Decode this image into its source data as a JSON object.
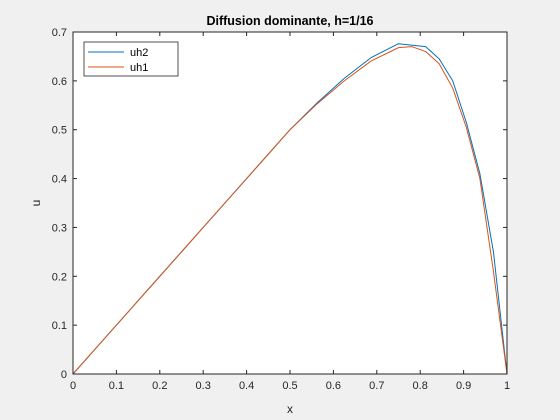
{
  "chart_data": {
    "type": "line",
    "title": "Diffusion dominante, h=1/16",
    "xlabel": "x",
    "ylabel": "u",
    "xlim": [
      0,
      1
    ],
    "ylim": [
      0,
      0.7
    ],
    "xticks": [
      "0",
      "0.1",
      "0.2",
      "0.3",
      "0.4",
      "0.5",
      "0.6",
      "0.7",
      "0.8",
      "0.9",
      "1"
    ],
    "yticks": [
      "0",
      "0.1",
      "0.2",
      "0.3",
      "0.4",
      "0.5",
      "0.6",
      "0.7"
    ],
    "grid": false,
    "legend_position": "top-left",
    "series": [
      {
        "name": "uh2",
        "color": "#0072BD",
        "x": [
          0,
          0.0625,
          0.125,
          0.1875,
          0.25,
          0.3125,
          0.375,
          0.4375,
          0.5,
          0.5625,
          0.625,
          0.6875,
          0.75,
          0.8125,
          0.84375,
          0.875,
          0.90625,
          0.9375,
          0.96875,
          1
        ],
        "y": [
          0,
          0.0625,
          0.125,
          0.1875,
          0.25,
          0.3125,
          0.375,
          0.4375,
          0.5,
          0.555,
          0.605,
          0.648,
          0.676,
          0.67,
          0.645,
          0.6,
          0.515,
          0.41,
          0.25,
          0
        ]
      },
      {
        "name": "uh1",
        "color": "#D95319",
        "x": [
          0,
          0.0625,
          0.125,
          0.1875,
          0.25,
          0.3125,
          0.375,
          0.4375,
          0.5,
          0.5625,
          0.625,
          0.6875,
          0.75,
          0.78125,
          0.8125,
          0.84375,
          0.875,
          0.90625,
          0.9375,
          0.96875,
          1
        ],
        "y": [
          0,
          0.0625,
          0.125,
          0.1875,
          0.25,
          0.3125,
          0.375,
          0.4375,
          0.5,
          0.553,
          0.6,
          0.641,
          0.668,
          0.67,
          0.66,
          0.635,
          0.585,
          0.505,
          0.4,
          0.21,
          0
        ]
      }
    ]
  }
}
